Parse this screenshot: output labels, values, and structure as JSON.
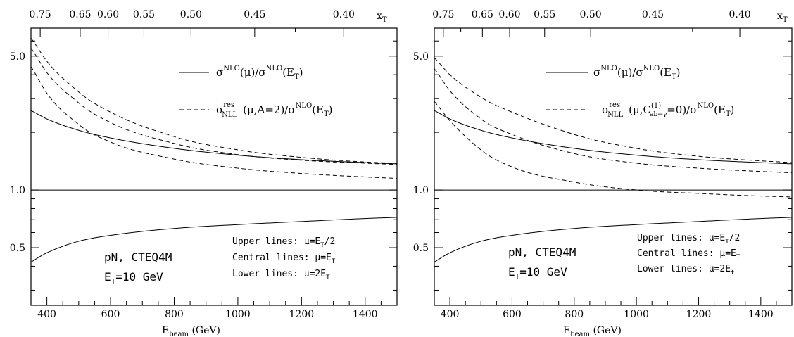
{
  "chart_data": [
    {
      "type": "line",
      "panel": "left",
      "xlabel": "E_beam (GeV)",
      "x_top_label": "x_T",
      "xlim": [
        350,
        1500
      ],
      "ylim": [
        0.25,
        7.0
      ],
      "yscale": "log",
      "x_ticks": [
        "400",
        "600",
        "800",
        "1000",
        "1200",
        "1400"
      ],
      "y_ticks": [
        "0.5",
        "1.0",
        "5.0"
      ],
      "x_top_ticks": [
        "0.75",
        "0.65",
        "0.60",
        "0.55",
        "0.50",
        "0.45",
        "0.40"
      ],
      "legend": [
        {
          "style": "solid",
          "label_main": "σ",
          "label_sup": "NLO",
          "label_rest": "(μ)/σ",
          "label_sup2": "NLO",
          "label_end": "(E",
          "label_sub": "T",
          "label_close": ")"
        },
        {
          "style": "dashed",
          "label_main": "σ",
          "label_sup": "res",
          "label_sub": "NLL",
          "label_rest": "(μ,A=2)/σ",
          "label_sup2": "NLO",
          "label_end": "(E",
          "label_sub2": "T",
          "label_close": ")"
        }
      ],
      "annotations": {
        "upper": "Upper lines: μ=E",
        "upper_sub": "T",
        "upper_end": "/2",
        "central": "Central lines: μ=E",
        "central_sub": "T",
        "lower": "Lower lines: μ=2E",
        "lower_sub": "T",
        "process": "pN, CTEQ4M",
        "et_main": "E",
        "et_sub": "T",
        "et_end": "=10 GeV"
      },
      "series": [
        {
          "style": "solid",
          "x": [
            350,
            400,
            500,
            600,
            800,
            1000,
            1200,
            1400,
            1500
          ],
          "y": [
            0.42,
            0.47,
            0.54,
            0.58,
            0.63,
            0.66,
            0.685,
            0.71,
            0.72
          ]
        },
        {
          "style": "solid",
          "x": [
            350,
            400,
            500,
            600,
            800,
            1000,
            1200,
            1400,
            1500
          ],
          "y": [
            2.6,
            2.35,
            2.05,
            1.87,
            1.65,
            1.52,
            1.44,
            1.39,
            1.37
          ]
        },
        {
          "style": "solid",
          "x": [
            350,
            1500
          ],
          "y": [
            1.0,
            1.0
          ]
        },
        {
          "style": "dashed",
          "x": [
            350,
            400,
            500,
            600,
            800,
            1000,
            1200,
            1400,
            1500
          ],
          "y": [
            6.2,
            4.7,
            3.25,
            2.55,
            1.9,
            1.62,
            1.48,
            1.4,
            1.38
          ]
        },
        {
          "style": "dashed",
          "x": [
            350,
            400,
            500,
            600,
            800,
            1000,
            1200,
            1400,
            1500
          ],
          "y": [
            5.5,
            4.1,
            2.85,
            2.25,
            1.75,
            1.53,
            1.43,
            1.38,
            1.36
          ]
        },
        {
          "style": "dashed",
          "x": [
            350,
            400,
            500,
            600,
            800,
            1000,
            1200,
            1400,
            1500
          ],
          "y": [
            4.4,
            3.2,
            2.2,
            1.78,
            1.45,
            1.3,
            1.22,
            1.17,
            1.15
          ]
        }
      ]
    },
    {
      "type": "line",
      "panel": "right",
      "xlabel": "E_beam (GeV)",
      "x_top_label": "x_T",
      "xlim": [
        350,
        1500
      ],
      "ylim": [
        0.25,
        7.0
      ],
      "yscale": "log",
      "x_ticks": [
        "400",
        "600",
        "800",
        "1000",
        "1200",
        "1400"
      ],
      "y_ticks": [
        "0.5",
        "1.0",
        "5.0"
      ],
      "x_top_ticks": [
        "0.75",
        "0.65",
        "0.60",
        "0.55",
        "0.50",
        "0.45",
        "0.40"
      ],
      "legend": [
        {
          "style": "solid",
          "label_main": "σ",
          "label_sup": "NLO",
          "label_rest": "(μ)/σ",
          "label_sup2": "NLO",
          "label_end": "(E",
          "label_sub": "T",
          "label_close": ")"
        },
        {
          "style": "dashed",
          "label_main": "σ",
          "label_sup": "res",
          "label_sub": "NLL",
          "label_rest": "(μ,C",
          "label_sup2": "(1)",
          "label_sub2": "ab→γ",
          "label_end": "=0)/σ",
          "label_sup3": "NLO",
          "label_end2": "(E",
          "label_sub3": "T",
          "label_close": ")"
        }
      ],
      "annotations": {
        "upper": "Upper lines: μ=E",
        "upper_sub": "T",
        "upper_end": "/2",
        "central": "Central lines: μ=E",
        "central_sub": "T",
        "lower": "Lower lines: μ=2E",
        "lower_sub": "t",
        "process": "pN, CTEQ4M",
        "et_main": "E",
        "et_sub": "T",
        "et_end": "=10 GeV"
      },
      "series": [
        {
          "style": "solid",
          "x": [
            350,
            400,
            500,
            600,
            800,
            1000,
            1200,
            1400,
            1500
          ],
          "y": [
            0.42,
            0.47,
            0.54,
            0.58,
            0.63,
            0.66,
            0.685,
            0.71,
            0.72
          ]
        },
        {
          "style": "solid",
          "x": [
            350,
            400,
            500,
            600,
            800,
            1000,
            1200,
            1400,
            1500
          ],
          "y": [
            2.6,
            2.35,
            2.05,
            1.87,
            1.65,
            1.52,
            1.44,
            1.39,
            1.37
          ]
        },
        {
          "style": "solid",
          "x": [
            350,
            1500
          ],
          "y": [
            1.0,
            1.0
          ]
        },
        {
          "style": "dashed",
          "x": [
            350,
            400,
            500,
            600,
            800,
            1000,
            1200,
            1400,
            1500
          ],
          "y": [
            4.9,
            4.0,
            3.05,
            2.55,
            1.95,
            1.65,
            1.5,
            1.42,
            1.39
          ]
        },
        {
          "style": "dashed",
          "x": [
            350,
            400,
            500,
            600,
            800,
            1000,
            1200,
            1400,
            1500
          ],
          "y": [
            4.3,
            3.3,
            2.35,
            1.95,
            1.55,
            1.38,
            1.3,
            1.25,
            1.23
          ]
        },
        {
          "style": "dashed",
          "x": [
            350,
            400,
            500,
            600,
            800,
            1000,
            1200,
            1400,
            1500
          ],
          "y": [
            2.9,
            2.3,
            1.62,
            1.32,
            1.1,
            1.0,
            0.96,
            0.93,
            0.92
          ]
        }
      ]
    }
  ]
}
